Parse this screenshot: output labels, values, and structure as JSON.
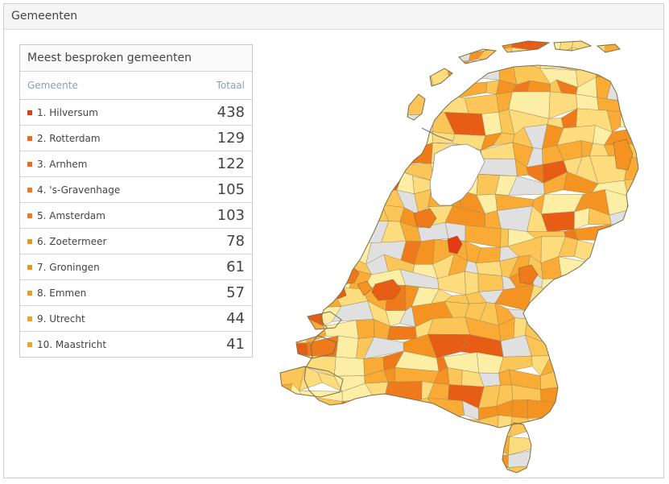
{
  "panel": {
    "title": "Gemeenten"
  },
  "list": {
    "title": "Meest besproken gemeenten",
    "col_name": "Gemeente",
    "col_total": "Totaal",
    "rows": [
      {
        "label": "1. Hilversum",
        "value": "438",
        "color": "#e63a12"
      },
      {
        "label": "2. Rotterdam",
        "value": "129",
        "color": "#f0681a"
      },
      {
        "label": "3. Arnhem",
        "value": "122",
        "color": "#f0681a"
      },
      {
        "label": "4. 's-Gravenhage",
        "value": "105",
        "color": "#f27a1c"
      },
      {
        "label": "5. Amsterdam",
        "value": "103",
        "color": "#f27a1c"
      },
      {
        "label": "6. Zoetermeer",
        "value": "78",
        "color": "#f5901e"
      },
      {
        "label": "7. Groningen",
        "value": "61",
        "color": "#f5901e"
      },
      {
        "label": "8. Emmen",
        "value": "57",
        "color": "#f6971f"
      },
      {
        "label": "9. Utrecht",
        "value": "44",
        "color": "#f7a020"
      },
      {
        "label": "10. Maastricht",
        "value": "41",
        "color": "#f7a020"
      }
    ]
  },
  "map": {
    "palette": [
      "#fdeea6",
      "#fddc7e",
      "#fcc557",
      "#f9ab36",
      "#f59322",
      "#ef7a1b",
      "#e85d15",
      "#e0e0e0"
    ]
  }
}
